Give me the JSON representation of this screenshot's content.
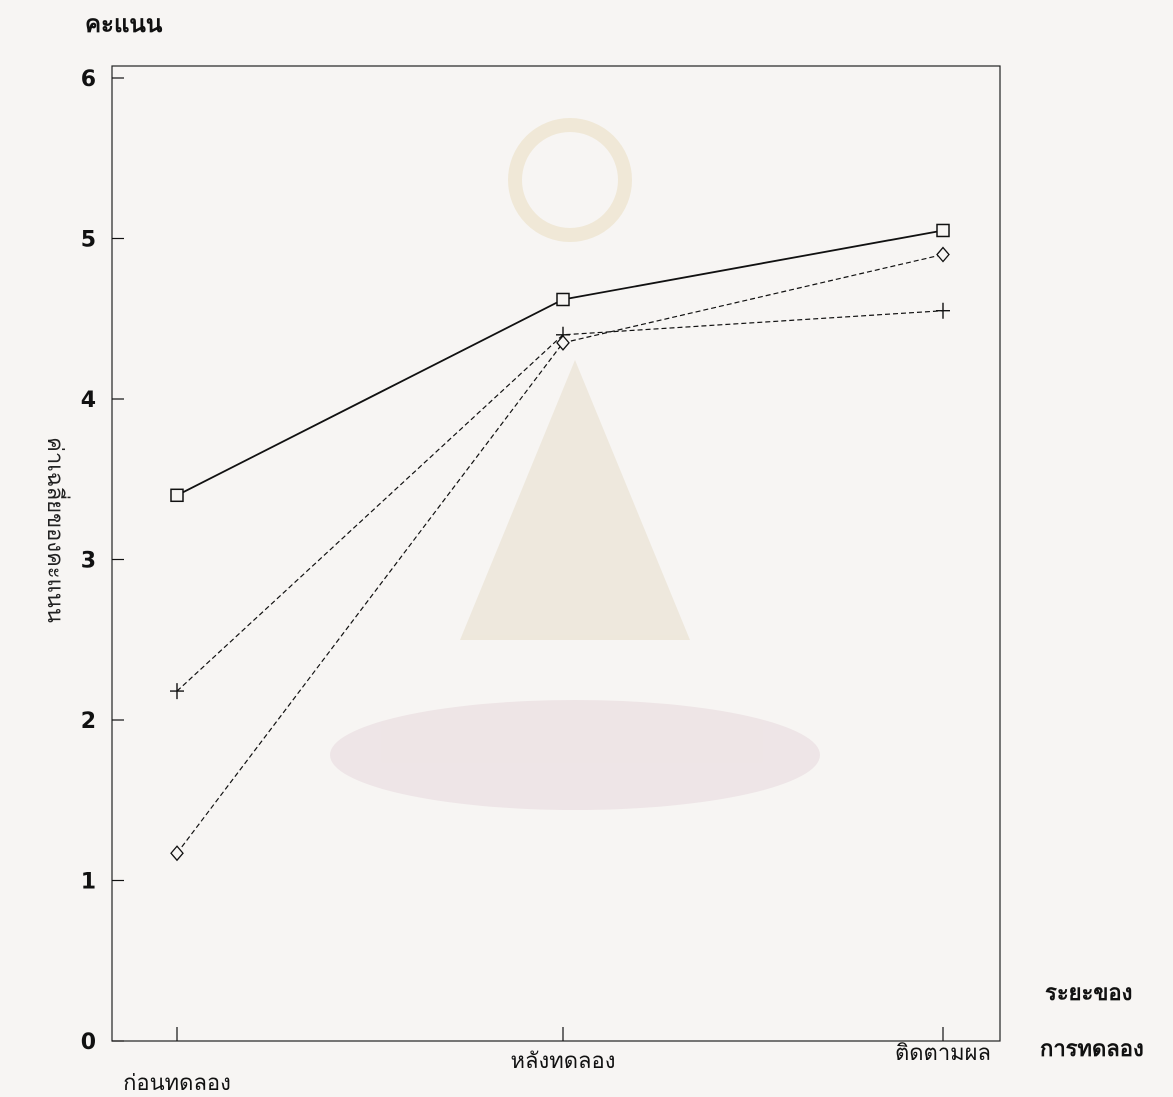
{
  "chart_data": {
    "type": "line",
    "top_label": "คะแนน",
    "ylabel": "ค่าเฉลี่ยของคะแนน",
    "xlabel_line1": "ระยะของ",
    "xlabel_line2": "การทดลอง",
    "categories": [
      "ก่อนทดลอง",
      "หลังทดลอง",
      "ติดตามผล"
    ],
    "ylim": [
      0,
      6
    ],
    "yticks": [
      "0",
      "1",
      "2",
      "3",
      "4",
      "5",
      "6"
    ],
    "series": [
      {
        "marker": "square",
        "line": "solid",
        "values": [
          3.4,
          4.62,
          5.05
        ]
      },
      {
        "marker": "plus",
        "line": "dashed",
        "values": [
          2.18,
          4.4,
          4.55
        ]
      },
      {
        "marker": "diamond",
        "line": "dashed",
        "values": [
          1.17,
          4.35,
          4.9
        ]
      }
    ],
    "grid": false,
    "legend": false,
    "colors": {
      "ink": "#111111",
      "background": "#f7f5f3"
    }
  }
}
